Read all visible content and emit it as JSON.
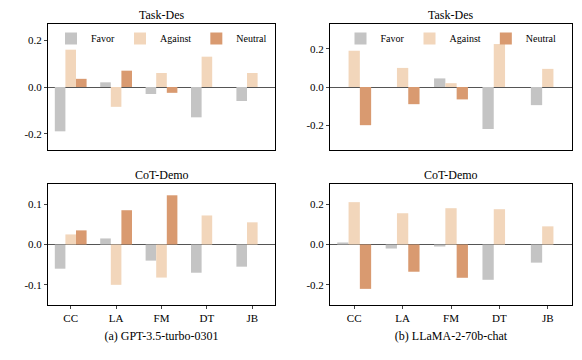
{
  "chart_data": [
    {
      "type": "bar",
      "title": "Task-Des",
      "categories": [
        "CC",
        "LA",
        "FM",
        "DT",
        "JB"
      ],
      "series": [
        {
          "name": "Favor",
          "color": "#c4c4c4",
          "values": [
            -0.19,
            0.02,
            -0.03,
            -0.13,
            -0.06
          ]
        },
        {
          "name": "Against",
          "color": "#f2d6bb",
          "values": [
            0.16,
            -0.085,
            0.06,
            0.13,
            0.06
          ]
        },
        {
          "name": "Neutral",
          "color": "#d99a70",
          "values": [
            0.035,
            0.07,
            -0.025,
            0,
            0
          ]
        }
      ],
      "ylim": [
        -0.27,
        0.27
      ],
      "yticks": [
        -0.2,
        {
          "value": 0,
          "label": "0.0"
        },
        0.2
      ],
      "grid": false,
      "legend": "top",
      "tick_labels": "y"
    },
    {
      "type": "bar",
      "title": "CoT-Demo",
      "xlabel": "(a) GPT-3.5-turbo-0301",
      "categories": [
        "CC",
        "LA",
        "FM",
        "DT",
        "JB"
      ],
      "series": [
        {
          "name": "Favor",
          "color": "#c4c4c4",
          "values": [
            -0.06,
            0.015,
            -0.04,
            -0.07,
            -0.055
          ]
        },
        {
          "name": "Against",
          "color": "#f2d6bb",
          "values": [
            0.025,
            -0.1,
            -0.082,
            0.072,
            0.055
          ]
        },
        {
          "name": "Neutral",
          "color": "#d99a70",
          "values": [
            0.035,
            0.085,
            0.122,
            0,
            0
          ]
        }
      ],
      "ylim": [
        -0.15,
        0.15
      ],
      "yticks": [
        -0.1,
        {
          "value": 0,
          "label": "0.0"
        },
        0.1
      ],
      "grid": false
    },
    {
      "type": "bar",
      "title": "Task-Des",
      "categories": [
        "CC",
        "LA",
        "FM",
        "DT",
        "JB"
      ],
      "series": [
        {
          "name": "Favor",
          "color": "#c4c4c4",
          "values": [
            0,
            0,
            0.045,
            -0.22,
            -0.095
          ]
        },
        {
          "name": "Against",
          "color": "#f2d6bb",
          "values": [
            0.19,
            0.1,
            0.02,
            0.225,
            0.095
          ]
        },
        {
          "name": "Neutral",
          "color": "#d99a70",
          "values": [
            -0.2,
            -0.09,
            -0.065,
            0,
            0
          ]
        }
      ],
      "ylim": [
        -0.33,
        0.33
      ],
      "yticks": [
        -0.2,
        {
          "value": 0,
          "label": "0.0"
        },
        0.2
      ],
      "grid": false,
      "legend": "top",
      "tick_labels": "y"
    },
    {
      "type": "bar",
      "title": "CoT-Demo",
      "xlabel": "(b) LLaMA-2-70b-chat",
      "categories": [
        "CC",
        "LA",
        "FM",
        "DT",
        "JB"
      ],
      "series": [
        {
          "name": "Favor",
          "color": "#c4c4c4",
          "values": [
            0.01,
            -0.02,
            -0.01,
            -0.175,
            -0.09
          ]
        },
        {
          "name": "Against",
          "color": "#f2d6bb",
          "values": [
            0.21,
            0.155,
            0.18,
            0.175,
            0.09
          ]
        },
        {
          "name": "Neutral",
          "color": "#d99a70",
          "values": [
            -0.22,
            -0.135,
            -0.165,
            0,
            0
          ]
        }
      ],
      "ylim": [
        -0.3,
        0.3
      ],
      "yticks": [
        -0.2,
        {
          "value": 0,
          "label": "0.0"
        },
        0.2
      ],
      "grid": false
    }
  ]
}
